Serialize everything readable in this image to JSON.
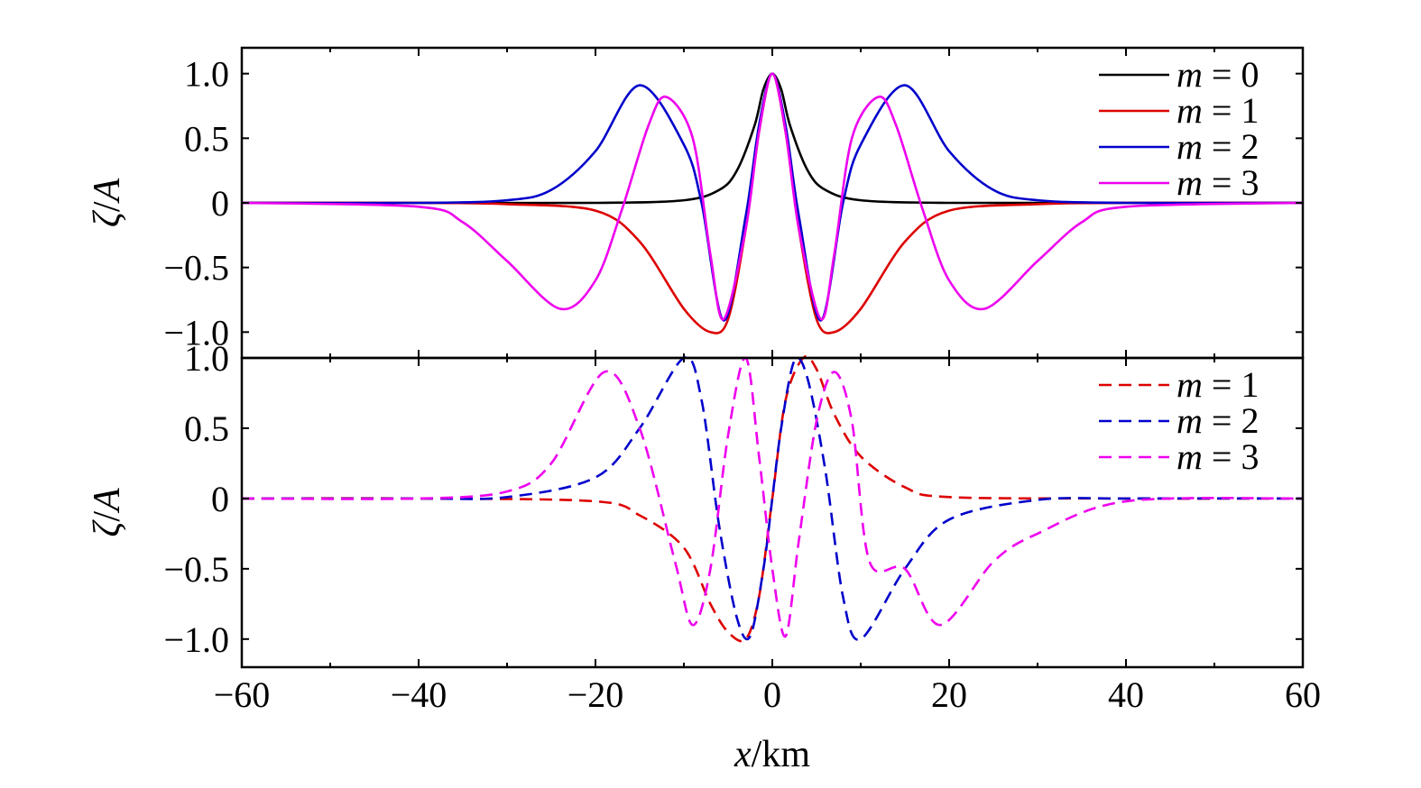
{
  "chart_data": [
    {
      "type": "line",
      "panel": "top",
      "ylabel_italic_1": "ζ",
      "ylabel_sep": "/",
      "ylabel_italic_2": "A",
      "xlim": [
        -60,
        60
      ],
      "ylim": [
        -1.2,
        1.2
      ],
      "yticks": [
        1.0,
        0.5,
        0,
        -0.5,
        -1.0
      ],
      "ytick_labels": [
        "1.0",
        "0.5",
        "0",
        "−0.5",
        "−1.0"
      ],
      "grid": false,
      "legend_placement": "top-right",
      "series": [
        {
          "name_var": "m",
          "name_eq": " = ",
          "name_val": "0",
          "color": "#000000",
          "dash": "solid",
          "x": [
            -60,
            -40,
            -20,
            -10,
            -6,
            -4,
            -2,
            -1,
            0,
            1,
            2,
            4,
            6,
            10,
            20,
            40,
            60
          ],
          "y": [
            0,
            0,
            0,
            0.02,
            0.1,
            0.25,
            0.6,
            0.88,
            1.0,
            0.88,
            0.6,
            0.25,
            0.1,
            0.02,
            0,
            0,
            0
          ]
        },
        {
          "name_var": "m",
          "name_eq": " = ",
          "name_val": "1",
          "color": "#dd0000",
          "dash": "solid",
          "x": [
            -60,
            -40,
            -30,
            -20,
            -15,
            -10,
            -7,
            -5,
            -3,
            -1.5,
            0,
            1.5,
            3,
            5,
            7,
            10,
            15,
            20,
            30,
            40,
            60
          ],
          "y": [
            0,
            0,
            -0.01,
            -0.06,
            -0.3,
            -0.82,
            -1.0,
            -0.9,
            -0.2,
            0.55,
            1.0,
            0.55,
            -0.2,
            -0.9,
            -1.0,
            -0.82,
            -0.3,
            -0.06,
            -0.01,
            0,
            0
          ]
        },
        {
          "name_var": "m",
          "name_eq": " = ",
          "name_val": "2",
          "color": "#0000cc",
          "dash": "solid",
          "x": [
            -60,
            -40,
            -30,
            -25,
            -20,
            -15,
            -10,
            -8,
            -5.5,
            -3,
            -1.5,
            0,
            1.5,
            3,
            5.5,
            8,
            10,
            15,
            20,
            25,
            30,
            40,
            60
          ],
          "y": [
            0,
            0,
            0.02,
            0.1,
            0.4,
            0.91,
            0.45,
            0.0,
            -0.91,
            -0.1,
            0.6,
            1.0,
            0.6,
            -0.1,
            -0.91,
            0.0,
            0.45,
            0.91,
            0.4,
            0.1,
            0.02,
            0,
            0
          ]
        },
        {
          "name_var": "m",
          "name_eq": " = ",
          "name_val": "3",
          "color": "#ee00ee",
          "dash": "solid",
          "x": [
            -60,
            -40,
            -35,
            -30,
            -24,
            -20,
            -17,
            -14,
            -12,
            -9,
            -7,
            -5.5,
            -3,
            -1.5,
            0,
            1.5,
            3,
            5.5,
            7,
            9,
            12,
            14,
            17,
            20,
            24,
            30,
            35,
            40,
            60
          ],
          "y": [
            0,
            -0.03,
            -0.15,
            -0.45,
            -0.82,
            -0.6,
            -0.05,
            0.6,
            0.82,
            0.5,
            -0.4,
            -0.9,
            -0.2,
            0.55,
            1.0,
            0.55,
            -0.2,
            -0.9,
            -0.4,
            0.5,
            0.82,
            0.6,
            -0.05,
            -0.6,
            -0.82,
            -0.45,
            -0.15,
            -0.03,
            0
          ]
        }
      ]
    },
    {
      "type": "line",
      "panel": "bottom",
      "ylabel_italic_1": "ζ",
      "ylabel_sep": "/",
      "ylabel_italic_2": "A",
      "xlabel_italic": "x",
      "xlabel_rest": "/km",
      "xlim": [
        -60,
        60
      ],
      "ylim": [
        -1.2,
        1.0
      ],
      "xticks": [
        -60,
        -40,
        -20,
        0,
        20,
        40,
        60
      ],
      "xtick_labels": [
        "−60",
        "−40",
        "−20",
        "0",
        "20",
        "40",
        "60"
      ],
      "yticks": [
        1.0,
        0.5,
        0,
        -0.5,
        -1.0
      ],
      "ytick_labels": [
        "1.0",
        "0.5",
        "0",
        "−0.5",
        "−1.0"
      ],
      "grid": false,
      "legend_placement": "top-right",
      "series": [
        {
          "name_var": "m",
          "name_eq": " = ",
          "name_val": "1",
          "color": "#dd0000",
          "dash": "dashed",
          "x": [
            -60,
            -40,
            -20,
            -15,
            -10,
            -7,
            -5,
            -3,
            -1.5,
            0,
            1.5,
            3.5,
            5,
            7,
            10,
            15,
            20,
            40,
            60
          ],
          "y": [
            0,
            0,
            -0.02,
            -0.12,
            -0.35,
            -0.75,
            -0.95,
            -1.0,
            -0.7,
            0,
            0.7,
            1.0,
            0.92,
            0.6,
            0.3,
            0.08,
            0.01,
            0,
            0
          ]
        },
        {
          "name_var": "m",
          "name_eq": " = ",
          "name_val": "2",
          "color": "#0000cc",
          "dash": "dashed",
          "x": [
            -60,
            -40,
            -30,
            -20,
            -15,
            -10,
            -8,
            -6,
            -4,
            -2.5,
            -1,
            0,
            1,
            2.5,
            4,
            6,
            8,
            10,
            15,
            20,
            30,
            40,
            60
          ],
          "y": [
            0,
            0,
            0.01,
            0.15,
            0.5,
            1.0,
            0.7,
            -0.2,
            -0.85,
            -0.98,
            -0.5,
            0.0,
            0.5,
            0.98,
            0.85,
            0.2,
            -0.7,
            -1.0,
            -0.5,
            -0.15,
            -0.01,
            0,
            0
          ]
        },
        {
          "name_var": "m",
          "name_eq": " = ",
          "name_val": "3",
          "color": "#ee00ee",
          "dash": "dashed",
          "x": [
            -60,
            -40,
            -30,
            -25,
            -19,
            -15,
            -11,
            -9,
            -7,
            -5,
            -3,
            -1.5,
            0,
            1.5,
            3,
            5,
            7,
            9,
            11,
            15,
            19,
            25,
            30,
            40,
            60
          ],
          "y": [
            0,
            0,
            0.05,
            0.25,
            0.9,
            0.5,
            -0.45,
            -0.9,
            -0.5,
            0.45,
            1.0,
            0.3,
            -0.5,
            -0.98,
            -0.3,
            0.55,
            0.9,
            0.55,
            -0.45,
            -0.5,
            -0.9,
            -0.45,
            -0.25,
            -0.02,
            0
          ]
        }
      ]
    }
  ]
}
